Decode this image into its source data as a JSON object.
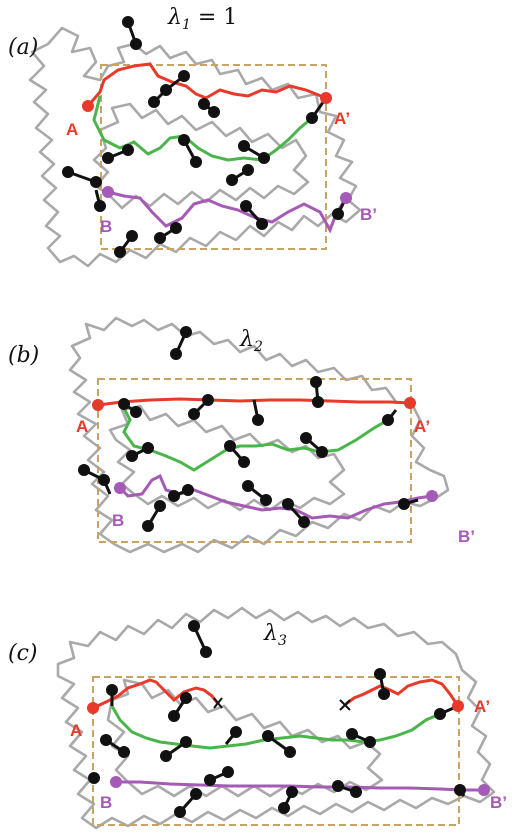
{
  "colors": {
    "gray_chain": "#a9a9a9",
    "box": "#c8a464",
    "red": "#e8392a",
    "green": "#4ab54a",
    "purple": "#a55ab5",
    "black": "#111111"
  },
  "panels": [
    {
      "tag": "(a)",
      "lambda_symbol": "λ",
      "lambda_sub": "1",
      "lambda_suffix": " = 1",
      "labels": {
        "A": "A",
        "A_prime": "A’",
        "B": "B",
        "B_prime": "B’"
      }
    },
    {
      "tag": "(b)",
      "lambda_symbol": "λ",
      "lambda_sub": "2",
      "lambda_suffix": "",
      "labels": {
        "A": "A",
        "A_prime": "A’",
        "B": "B",
        "B_prime": "B’"
      }
    },
    {
      "tag": "(c)",
      "lambda_symbol": "λ",
      "lambda_sub": "3",
      "lambda_suffix": "",
      "labels": {
        "A": "A",
        "A_prime": "A’",
        "B": "B",
        "B_prime": "B’"
      }
    }
  ]
}
